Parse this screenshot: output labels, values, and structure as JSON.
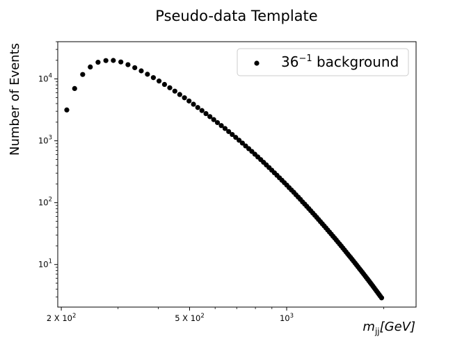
{
  "chart_data": {
    "type": "scatter",
    "title": "Pseudo-data Template",
    "xlabel": "m_jj[GeV]",
    "ylabel": "Number of Events",
    "x_scale": "log",
    "y_scale": "log",
    "xlim": [
      195,
      2520
    ],
    "ylim": [
      2.05,
      40000
    ],
    "grid": false,
    "legend_position": "top-right",
    "marker_color": "#000000",
    "x_ticks": [
      {
        "value": 200,
        "label": "2 X 10",
        "exp": "2"
      },
      {
        "value": 500,
        "label": "5 X 10",
        "exp": "2"
      },
      {
        "value": 1000,
        "label": "10",
        "exp": "3"
      }
    ],
    "y_ticks": [
      {
        "value": 10,
        "label": "10",
        "exp": "1"
      },
      {
        "value": 100,
        "label": "10",
        "exp": "2"
      },
      {
        "value": 1000,
        "label": "10",
        "exp": "3"
      },
      {
        "value": 10000,
        "label": "10",
        "exp": "4"
      }
    ],
    "series": [
      {
        "name": "36",
        "name_sup": "−1",
        "name_suffix": " background",
        "points": [
          [
            208,
            3150
          ],
          [
            220,
            7000
          ],
          [
            233,
            11800
          ],
          [
            246,
            15600
          ],
          [
            260,
            18600
          ],
          [
            275,
            19800
          ],
          [
            290,
            19900
          ],
          [
            306,
            18800
          ],
          [
            322,
            17000
          ],
          [
            338,
            15200
          ],
          [
            354,
            13500
          ],
          [
            370,
            11900
          ],
          [
            386,
            10500
          ],
          [
            402,
            9250
          ],
          [
            418,
            8150
          ],
          [
            434,
            7200
          ],
          [
            450,
            6350
          ],
          [
            466,
            5600
          ],
          [
            482,
            4960
          ],
          [
            498,
            4400
          ],
          [
            514,
            3900
          ],
          [
            530,
            3450
          ],
          [
            546,
            3080
          ],
          [
            562,
            2750
          ],
          [
            578,
            2460
          ],
          [
            594,
            2200
          ],
          [
            610,
            1970
          ],
          [
            627,
            1760
          ],
          [
            644,
            1580
          ],
          [
            661,
            1410
          ],
          [
            678,
            1265
          ],
          [
            695,
            1135
          ],
          [
            712,
            1020
          ],
          [
            729,
            918
          ],
          [
            746,
            826
          ],
          [
            763,
            745
          ],
          [
            780,
            672
          ],
          [
            797,
            606
          ],
          [
            814,
            548
          ],
          [
            831,
            496
          ],
          [
            848,
            449
          ],
          [
            865,
            407
          ],
          [
            882,
            369
          ],
          [
            899,
            335
          ],
          [
            916,
            304
          ],
          [
            933,
            277
          ],
          [
            950,
            252
          ],
          [
            967,
            230
          ],
          [
            984,
            210
          ],
          [
            1001,
            192
          ],
          [
            1018,
            175
          ],
          [
            1035,
            160
          ],
          [
            1052,
            147
          ],
          [
            1069,
            134
          ],
          [
            1086,
            123
          ],
          [
            1103,
            113
          ],
          [
            1120,
            103
          ],
          [
            1137,
            95
          ],
          [
            1154,
            87.3
          ],
          [
            1171,
            80.3
          ],
          [
            1188,
            73.9
          ],
          [
            1205,
            68.1
          ],
          [
            1222,
            62.8
          ],
          [
            1239,
            57.9
          ],
          [
            1256,
            53.4
          ],
          [
            1273,
            49.3
          ],
          [
            1290,
            45.6
          ],
          [
            1307,
            42.1
          ],
          [
            1324,
            39.0
          ],
          [
            1341,
            36.1
          ],
          [
            1358,
            33.4
          ],
          [
            1375,
            31.0
          ],
          [
            1392,
            28.7
          ],
          [
            1409,
            26.7
          ],
          [
            1426,
            24.8
          ],
          [
            1443,
            23.0
          ],
          [
            1460,
            21.4
          ],
          [
            1477,
            19.9
          ],
          [
            1494,
            18.5
          ],
          [
            1511,
            17.2
          ],
          [
            1528,
            16.0
          ],
          [
            1545,
            14.9
          ],
          [
            1562,
            13.9
          ],
          [
            1579,
            13.0
          ],
          [
            1596,
            12.1
          ],
          [
            1613,
            11.3
          ],
          [
            1630,
            10.55
          ],
          [
            1647,
            9.85
          ],
          [
            1664,
            9.2
          ],
          [
            1681,
            8.6
          ],
          [
            1698,
            8.05
          ],
          [
            1715,
            7.53
          ],
          [
            1732,
            7.05
          ],
          [
            1749,
            6.6
          ],
          [
            1766,
            6.18
          ],
          [
            1783,
            5.79
          ],
          [
            1800,
            5.43
          ],
          [
            1817,
            5.09
          ],
          [
            1834,
            4.77
          ],
          [
            1851,
            4.48
          ],
          [
            1868,
            4.2
          ],
          [
            1885,
            3.94
          ],
          [
            1902,
            3.7
          ],
          [
            1919,
            3.48
          ],
          [
            1936,
            3.27
          ],
          [
            1953,
            3.07
          ],
          [
            1970,
            2.89
          ]
        ]
      }
    ]
  }
}
